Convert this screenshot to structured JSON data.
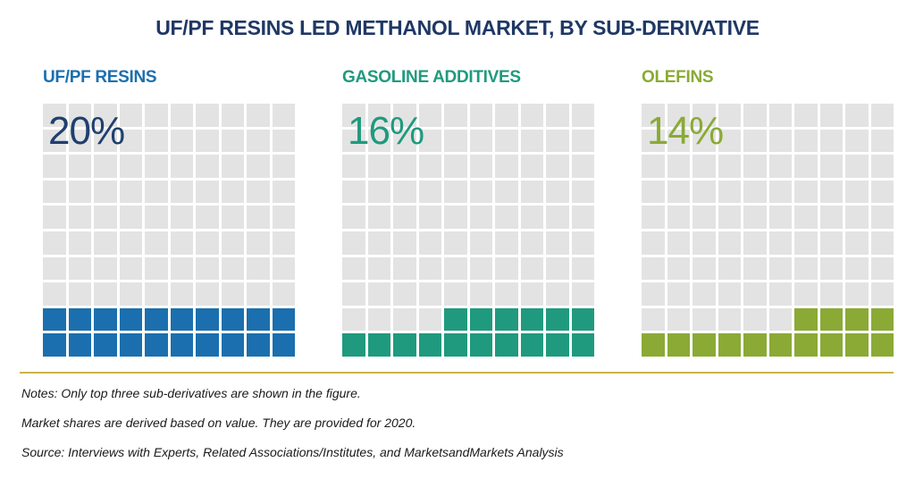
{
  "title": "UF/PF RESINS LED METHANOL MARKET, BY SUB-DERIVATIVE",
  "chart_data": {
    "type": "waffle",
    "title": "UF/PF RESINS LED METHANOL MARKET, BY SUB-DERIVATIVE",
    "grid": "10x10",
    "series": [
      {
        "name": "UF/PF RESINS",
        "label": "20%",
        "value": 20,
        "color": "#1b6fae"
      },
      {
        "name": "GASOLINE ADDITIVES",
        "label": "16%",
        "value": 16,
        "color": "#1f9a7e",
        "light_color": "#7ab8a8"
      },
      {
        "name": "OLEFINS",
        "label": "14%",
        "value": 14,
        "color": "#8aaa35"
      }
    ]
  },
  "notes": [
    "Notes: Only top three sub-derivatives are shown in the figure.",
    "Market shares are derived based on value. They are provided for 2020.",
    "Source: Interviews with Experts, Related Associations/Institutes, and MarketsandMarkets Analysis"
  ],
  "colors": {
    "title": "#1f3864",
    "empty_cell": "#e3e3e3",
    "divider": "#c9b44a"
  }
}
